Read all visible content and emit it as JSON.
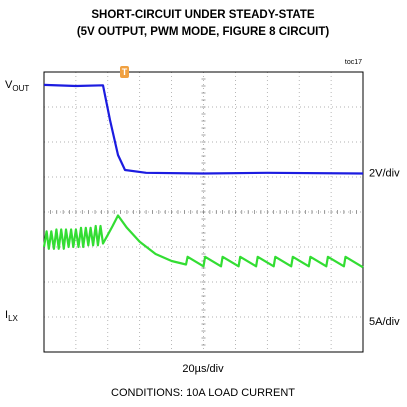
{
  "chart_data": {
    "type": "oscilloscope",
    "title": [
      "SHORT-CIRCUIT UNDER STEADY-STATE",
      "(5V OUTPUT, PWM MODE, FIGURE 8 CIRCUIT)"
    ],
    "figure_id": "toc17",
    "x_scale": "20µs/div",
    "note": "CONDITIONS: 10A LOAD CURRENT",
    "xlim": [
      0,
      10
    ],
    "ylim": [
      0,
      8
    ],
    "series": [
      {
        "name": {
          "main": "V",
          "sub": "OUT"
        },
        "scale": "2V/div",
        "color": "#1c1ce0",
        "x": [
          0,
          1.0,
          1.85,
          2.07,
          2.32,
          2.54,
          3.2,
          5.0,
          7.0,
          10
        ],
        "values": [
          7.63,
          7.6,
          7.62,
          6.63,
          5.63,
          5.2,
          5.12,
          5.1,
          5.12,
          5.1
        ]
      },
      {
        "name": {
          "main": "I",
          "sub": "LX"
        },
        "scale": "5A/div",
        "color": "#33dd33",
        "x": [
          0,
          0.08,
          0.15,
          0.23,
          0.31,
          0.39,
          0.46,
          0.54,
          0.62,
          0.69,
          0.77,
          0.85,
          0.92,
          1.0,
          1.08,
          1.16,
          1.23,
          1.31,
          1.39,
          1.46,
          1.54,
          1.62,
          1.69,
          1.77,
          1.85,
          2.0,
          2.15,
          2.32,
          2.6,
          3.0,
          3.5,
          4.0,
          4.45,
          4.5,
          5.0,
          5.05,
          5.55,
          5.6,
          6.1,
          6.15,
          6.65,
          6.7,
          7.2,
          7.25,
          7.75,
          7.8,
          8.3,
          8.35,
          8.85,
          8.9,
          9.4,
          9.45,
          10
        ],
        "values": [
          3.0,
          3.45,
          2.95,
          3.45,
          2.95,
          3.5,
          2.95,
          3.5,
          2.95,
          3.5,
          3.0,
          3.5,
          3.0,
          3.5,
          3.0,
          3.55,
          3.0,
          3.55,
          3.05,
          3.55,
          3.05,
          3.6,
          3.05,
          3.6,
          3.1,
          3.35,
          3.6,
          3.9,
          3.55,
          3.15,
          2.8,
          2.6,
          2.5,
          2.72,
          2.45,
          2.72,
          2.45,
          2.72,
          2.45,
          2.72,
          2.45,
          2.72,
          2.45,
          2.72,
          2.45,
          2.72,
          2.45,
          2.72,
          2.45,
          2.72,
          2.45,
          2.72,
          2.42
        ]
      }
    ]
  }
}
